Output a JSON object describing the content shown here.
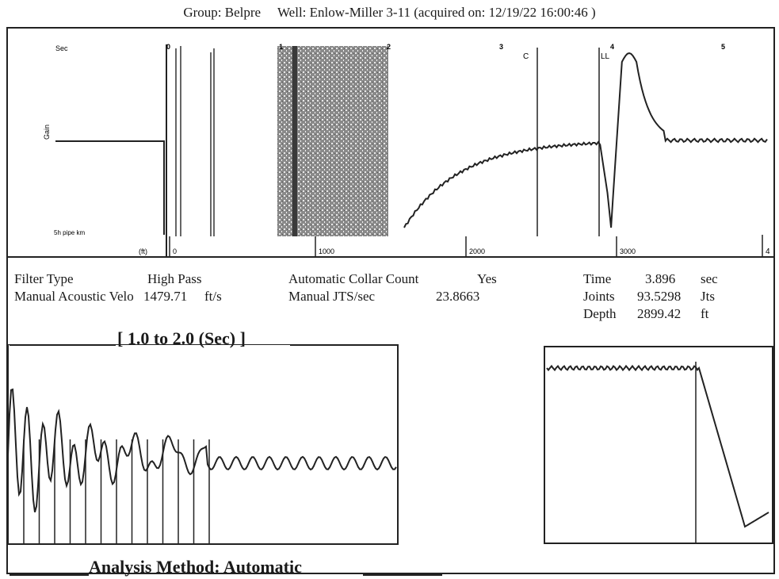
{
  "header": {
    "group_label": "Group: Belpre",
    "well_label": "Well: Enlow-Miller 3-11 (acquired on: 12/19/22 16:00:46 )"
  },
  "top_panel": {
    "left_scale_top": "Sec",
    "left_scale_bottom": "(ft)",
    "left_scale_side": "Gain",
    "left_scale_caption": "5h pipe km",
    "markers": [
      "0",
      "1",
      "2",
      "3",
      "4",
      "5"
    ],
    "bottom_ticks": [
      "0",
      "1000",
      "2000",
      "3000"
    ],
    "edge_tick": "4",
    "cursor_label_c": "C",
    "cursor_label_ll": "LL"
  },
  "params": {
    "filter_type_label": "Filter Type",
    "filter_type_value": "High Pass",
    "velocity_label": "Manual Acoustic Velo",
    "velocity_value": "1479.71",
    "velocity_unit": "ft/s",
    "collar_label": "Automatic Collar Count",
    "collar_value": "Yes",
    "jts_label": "Manual JTS/sec",
    "jts_value": "23.8663",
    "time_label": "Time",
    "time_value": "3.896",
    "time_unit": "sec",
    "joints_label": "Joints",
    "joints_value": "93.5298",
    "joints_unit": "Jts",
    "depth_label": "Depth",
    "depth_value": "2899.42",
    "depth_unit": "ft"
  },
  "range_label": "[ 1.0  to  2.0 (Sec) ]",
  "analysis_label": "Analysis Method:   Automatic",
  "chart_data": [
    {
      "type": "line",
      "title": "",
      "x": [
        0.0,
        0.05,
        0.1,
        0.15,
        0.2,
        0.25,
        0.3,
        0.35,
        0.4,
        0.45,
        0.5,
        0.55,
        0.6,
        0.65,
        0.7,
        0.75,
        0.8,
        0.85,
        0.9,
        0.95,
        1.0
      ],
      "series": [
        {
          "values": [
            -1.0,
            -0.78,
            -0.6,
            -0.45,
            -0.33,
            -0.23,
            -0.15,
            -0.08,
            -0.03,
            0.0,
            0.0,
            -0.98,
            0.45,
            1.0,
            0.6,
            0.2,
            0.0,
            -0.04,
            0.0,
            0.02,
            0.0
          ]
        }
      ],
      "xlim": [
        0,
        1
      ],
      "ylim": [
        -1.1,
        1.1
      ],
      "cursors": [
        0.42,
        0.62
      ],
      "grid": false
    },
    {
      "type": "line",
      "title": "[ 1.0  to  2.0 (Sec) ]",
      "x": [
        1.0,
        2.0
      ],
      "series": [
        {
          "values": [
            0.9,
            0.05
          ]
        }
      ],
      "xlim": [
        1.0,
        2.0
      ],
      "collar_marker_count": 13,
      "grid": false
    },
    {
      "type": "line",
      "title": "",
      "series": [
        {
          "values": [
            0.85,
            0.85,
            0.85,
            0.85,
            0.84,
            0.2,
            -0.6,
            -0.98,
            -0.8
          ]
        }
      ],
      "x": [
        0.0,
        0.2,
        0.4,
        0.6,
        0.8,
        0.85,
        0.9,
        0.95,
        1.0
      ],
      "xlim": [
        0,
        1
      ],
      "ylim": [
        -1,
        1
      ],
      "cursors": [
        0.8
      ],
      "grid": false
    }
  ]
}
